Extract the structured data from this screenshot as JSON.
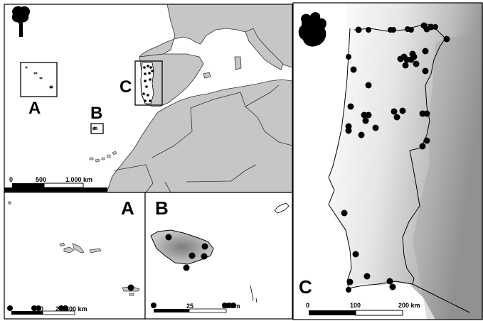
{
  "panels": {
    "overview": {
      "inset_labels": [
        "A",
        "B",
        "C"
      ],
      "scale": {
        "ticks": [
          "0",
          "500",
          "1.000 km"
        ]
      }
    },
    "azores": {
      "label": "A",
      "scale": {
        "ticks": [
          "0",
          "100",
          "200",
          "300 km"
        ]
      }
    },
    "madeira": {
      "label": "B",
      "scale": {
        "ticks": [
          "0",
          "25",
          "50 km"
        ]
      }
    },
    "portugal": {
      "label": "C",
      "scale": {
        "ticks": [
          "0",
          "100",
          "200 km"
        ]
      }
    }
  },
  "colors": {
    "sea": "#ffffff",
    "land_other": "#c6c6c6",
    "land_study": "#ffffff",
    "border": "#000000",
    "points": "#000000"
  },
  "icons": [
    "tree-icon",
    "animal-silhouette-icon"
  ]
}
